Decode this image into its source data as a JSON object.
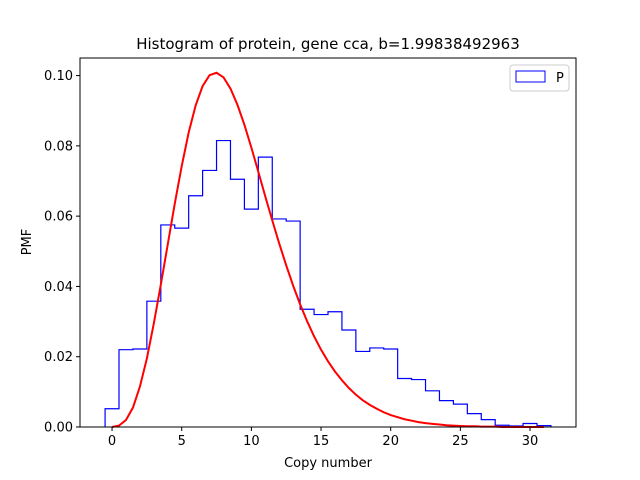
{
  "chart_data": {
    "type": "histogram_with_curve",
    "title": "Histogram of protein, gene cca, b=1.99838492963",
    "xlabel": "Copy number",
    "ylabel": "PMF",
    "xlim": [
      -2.3,
      33.3
    ],
    "ylim": [
      0,
      0.105
    ],
    "xticks": [
      0,
      5,
      10,
      15,
      20,
      25,
      30
    ],
    "yticks": [
      0.0,
      0.02,
      0.04,
      0.06,
      0.08,
      0.1
    ],
    "ytick_labels": [
      "0.00",
      "0.02",
      "0.04",
      "0.06",
      "0.08",
      "0.10"
    ],
    "legend": {
      "position": "upper right",
      "entries": [
        "P"
      ]
    },
    "histogram": {
      "name": "P",
      "color": "#0000ff",
      "edges": [
        -0.5,
        0.5,
        1.5,
        2.5,
        3.5,
        4.5,
        5.5,
        6.5,
        7.5,
        8.5,
        9.5,
        10.5,
        11.5,
        12.5,
        13.5,
        14.5,
        15.5,
        16.5,
        17.5,
        18.5,
        19.5,
        20.5,
        21.5,
        22.5,
        23.5,
        24.5,
        25.5,
        26.5,
        27.5,
        28.5,
        29.5,
        30.5,
        31.5
      ],
      "values": [
        0.0052,
        0.022,
        0.0222,
        0.0358,
        0.0575,
        0.0566,
        0.0658,
        0.073,
        0.0815,
        0.0705,
        0.062,
        0.0768,
        0.0592,
        0.0586,
        0.0335,
        0.032,
        0.0328,
        0.0276,
        0.0215,
        0.0225,
        0.0222,
        0.0138,
        0.0135,
        0.0103,
        0.0075,
        0.0065,
        0.0038,
        0.0021,
        0.0005,
        0.0003,
        0.001,
        0.0004
      ]
    },
    "curve": {
      "color": "#ff0000",
      "x": [
        0,
        0.5,
        1,
        1.5,
        2,
        2.5,
        3,
        3.5,
        4,
        4.5,
        5,
        5.5,
        6,
        6.5,
        7,
        7.5,
        8,
        8.5,
        9,
        9.5,
        10,
        10.5,
        11,
        11.5,
        12,
        12.5,
        13,
        13.5,
        14,
        14.5,
        15,
        15.5,
        16,
        16.5,
        17,
        17.5,
        18,
        18.5,
        19,
        19.5,
        20,
        20.5,
        21,
        21.5,
        22,
        22.5,
        23,
        23.5,
        24,
        24.5,
        25,
        25.5,
        26,
        26.5,
        27,
        27.5,
        28,
        28.5,
        29,
        29.5,
        30,
        30.5,
        31
      ],
      "y": [
        0.0,
        0.0004,
        0.002,
        0.0055,
        0.0115,
        0.0195,
        0.0295,
        0.0405,
        0.052,
        0.0635,
        0.0742,
        0.0838,
        0.0915,
        0.097,
        0.1001,
        0.1008,
        0.0995,
        0.0963,
        0.0917,
        0.086,
        0.0795,
        0.0726,
        0.0656,
        0.0588,
        0.0522,
        0.046,
        0.0402,
        0.0349,
        0.0301,
        0.0258,
        0.022,
        0.0187,
        0.0158,
        0.0133,
        0.0111,
        0.0092,
        0.0076,
        0.0063,
        0.0052,
        0.0042,
        0.0034,
        0.0028,
        0.0022,
        0.0018,
        0.0014,
        0.0011,
        0.0009,
        0.0007,
        0.0005,
        0.0004,
        0.0003,
        0.0002,
        0.0002,
        0.0001,
        0.0001,
        0.0001,
        0.0,
        0.0,
        0.0,
        0.0,
        0.0,
        0.0,
        0.0
      ]
    }
  }
}
